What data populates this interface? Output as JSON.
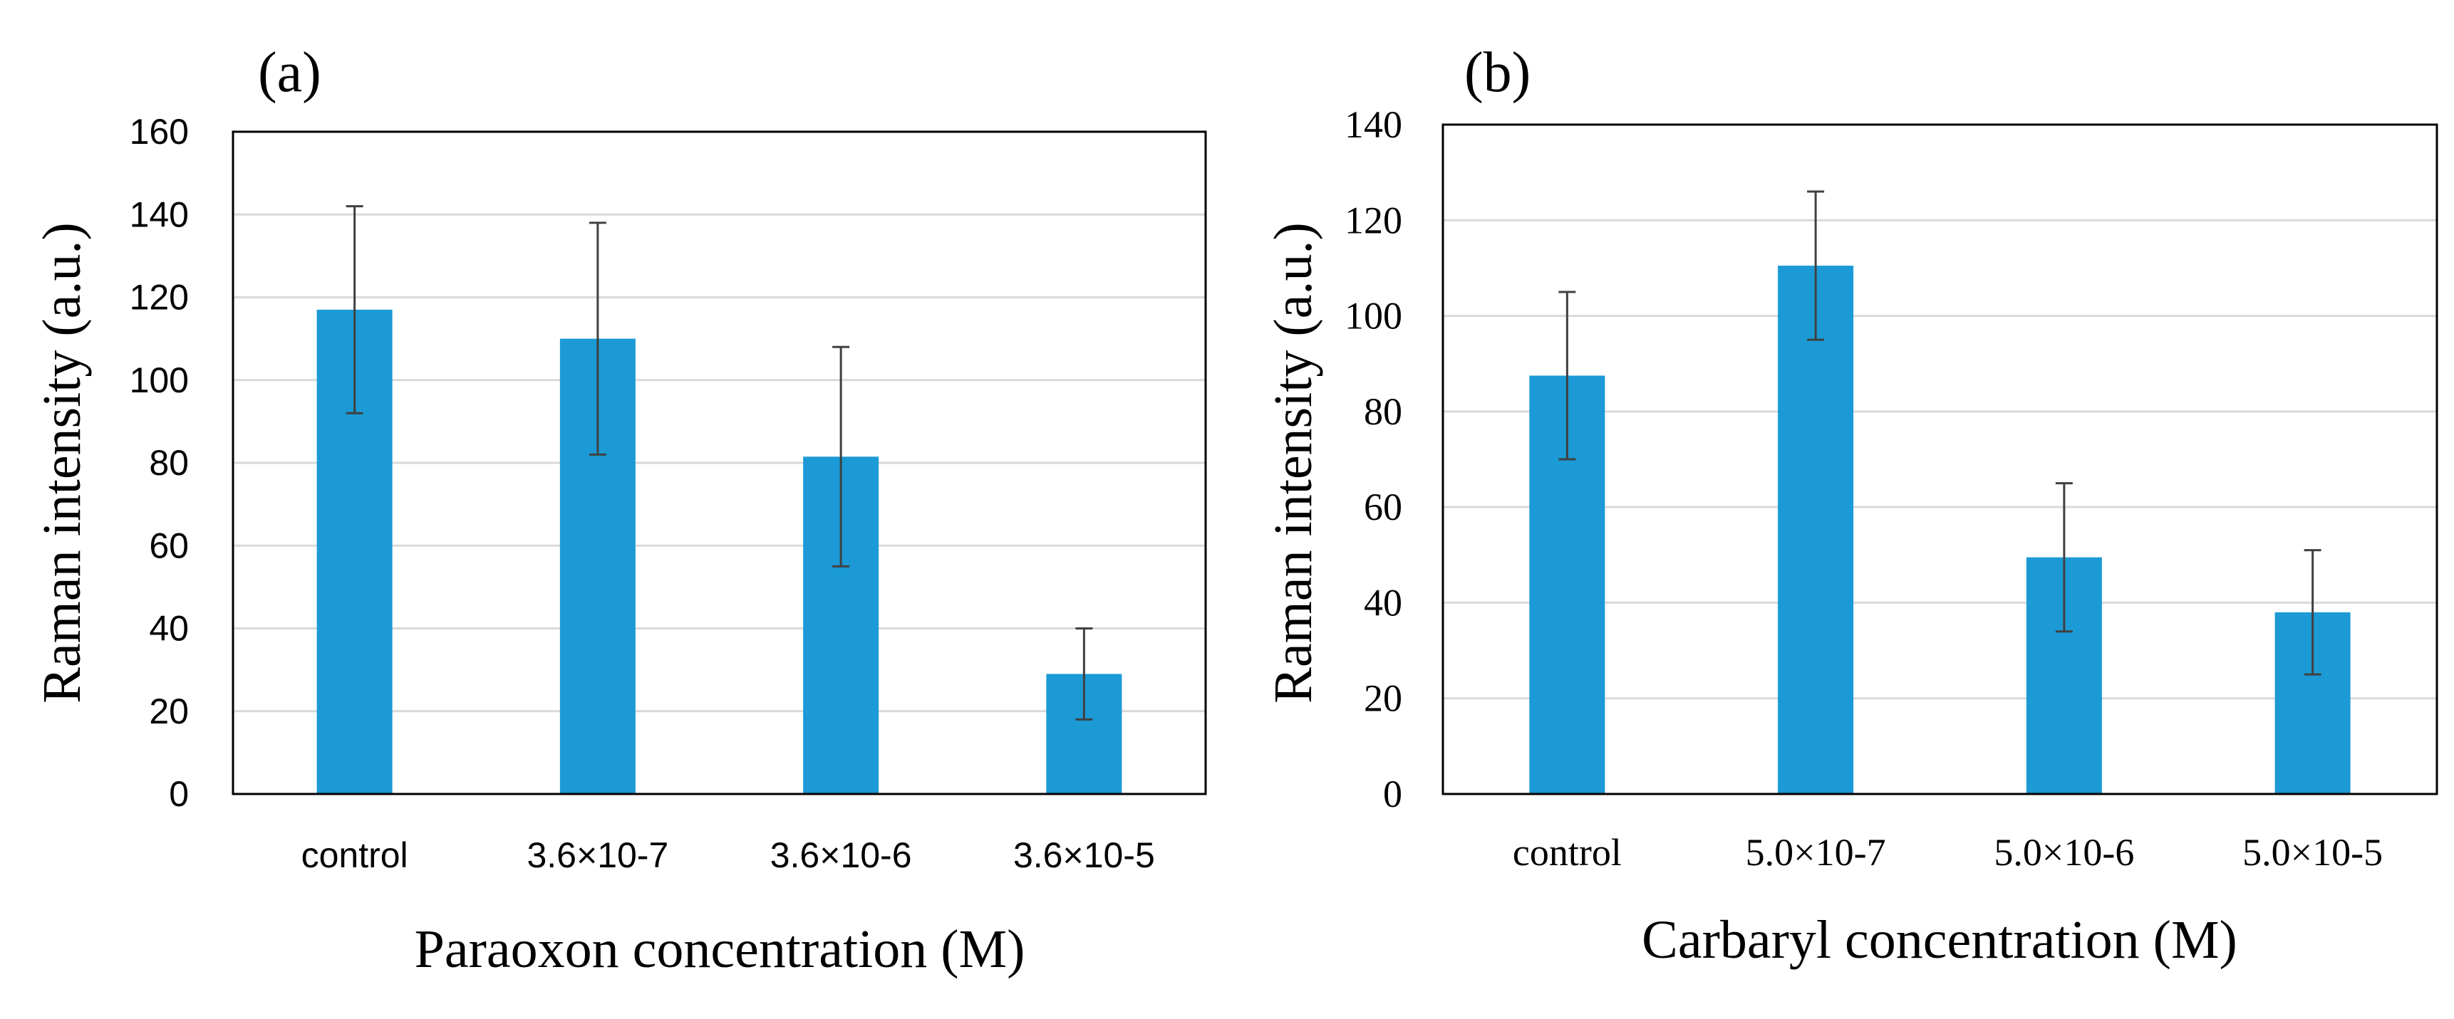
{
  "chart_data": [
    {
      "type": "bar",
      "panel_label": "(a)",
      "title": "",
      "xlabel": "Paraoxon concentration (M)",
      "ylabel": "Raman intensity (a.u.)",
      "categories": [
        "control",
        "3.6×10-7",
        "3.6×10-6",
        "3.6×10-5"
      ],
      "values": [
        117,
        110,
        81.5,
        29
      ],
      "error_low": [
        92,
        82,
        55,
        18
      ],
      "error_high": [
        142,
        138,
        108,
        40
      ],
      "ylim": [
        0,
        160
      ],
      "yticks": [
        0,
        20,
        40,
        60,
        80,
        100,
        120,
        140,
        160
      ],
      "grid": true,
      "legend": "none",
      "bar_color": "#1b9ad6"
    },
    {
      "type": "bar",
      "panel_label": "(b)",
      "title": "",
      "xlabel": "Carbaryl concentration (M)",
      "ylabel": "Raman intensity (a.u.)",
      "categories": [
        "control",
        "5.0×10-7",
        "5.0×10-6",
        "5.0×10-5"
      ],
      "values": [
        87.5,
        110.5,
        49.5,
        38
      ],
      "error_low": [
        70,
        95,
        34,
        25
      ],
      "error_high": [
        105,
        126,
        65,
        51
      ],
      "ylim": [
        0,
        140
      ],
      "yticks": [
        0,
        20,
        40,
        60,
        80,
        100,
        120,
        140
      ],
      "grid": true,
      "legend": "none",
      "bar_color": "#1b9ad6"
    }
  ]
}
